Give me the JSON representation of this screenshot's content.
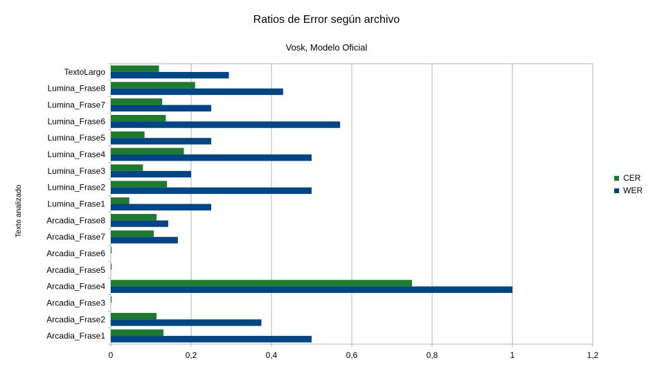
{
  "chart_data": {
    "type": "bar",
    "orientation": "horizontal",
    "title": "Ratios de Error según archivo",
    "subtitle": "Vosk, Modelo Oficial",
    "xlabel": "",
    "ylabel": "Texto analizado",
    "xlim": [
      0,
      1.2
    ],
    "x_ticks": [
      "0",
      "0,2",
      "0,4",
      "0,6",
      "0,8",
      "1",
      "1,2"
    ],
    "grid": "vertical",
    "legend_position": "right",
    "categories": [
      "TextoLargo",
      "Lumina_Frase8",
      "Lumina_Frase7",
      "Lumina_Frase6",
      "Lumina_Frase5",
      "Lumina_Frase4",
      "Lumina_Frase3",
      "Lumina_Frase2",
      "Lumina_Frase1",
      "Arcadia_Frase8",
      "Arcadia_Frase7",
      "Arcadia_Frase6",
      "Arcadia_Frase5",
      "Arcadia_Frase4",
      "Arcadia_Frase3",
      "Arcadia_Frase2",
      "Arcadia_Frase1"
    ],
    "series": [
      {
        "name": "CER",
        "color": "#1e7b2e",
        "values": [
          0.12,
          0.21,
          0.128,
          0.137,
          0.084,
          0.182,
          0.08,
          0.14,
          0.046,
          0.114,
          0.107,
          0.002,
          0.002,
          0.75,
          0.002,
          0.114,
          0.131
        ]
      },
      {
        "name": "WER",
        "color": "#004586",
        "values": [
          0.294,
          0.429,
          0.25,
          0.571,
          0.25,
          0.5,
          0.2,
          0.5,
          0.25,
          0.143,
          0.167,
          0.0,
          0.0,
          1.0,
          0.0,
          0.375,
          0.5
        ]
      }
    ]
  }
}
